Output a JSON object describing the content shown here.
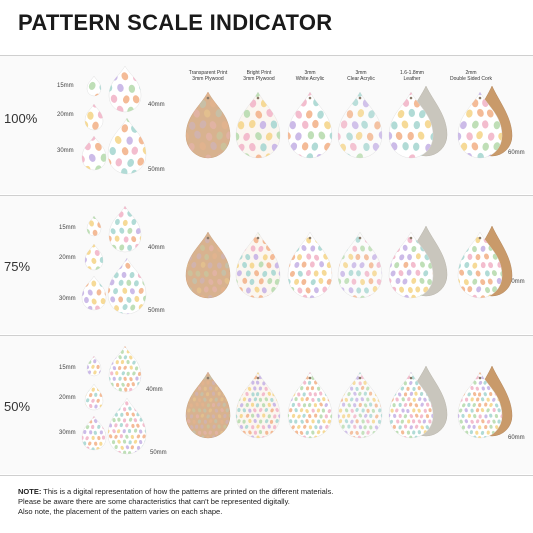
{
  "title": "PATTERN SCALE INDICATOR",
  "materials": [
    {
      "line1": "Transparent Print",
      "line2": "3mm Plywood"
    },
    {
      "line1": "Bright Print",
      "line2": "3mm Plywood"
    },
    {
      "line1": "3mm",
      "line2": "White Acrylic"
    },
    {
      "line1": "3mm",
      "line2": "Clear Acrylic"
    },
    {
      "line1": "1.6-1.8mm",
      "line2": "Leather"
    },
    {
      "line1": "2mm",
      "line2": "Double Sided Cork"
    }
  ],
  "rows": [
    {
      "scale": "100%",
      "sizes": [
        "15mm",
        "20mm",
        "30mm",
        "40mm",
        "50mm"
      ],
      "size_right": "60mm"
    },
    {
      "scale": "75%",
      "sizes": [
        "15mm",
        "20mm",
        "30mm",
        "40mm",
        "50mm"
      ],
      "size_right": "60mm"
    },
    {
      "scale": "50%",
      "sizes": [
        "15mm",
        "20mm",
        "30mm",
        "40mm",
        "50mm"
      ],
      "size_right": "60mm"
    }
  ],
  "note": {
    "label": "NOTE:",
    "line1": "This is a digital representation of how the patterns are printed on the different materials.",
    "line2": "Please be aware there are some characteristics that can't be represented digitally.",
    "line3": "Also note, the placement of the pattern varies on each shape."
  },
  "colors": {
    "plywood": "#d8b28f",
    "white": "#ffffff",
    "leather": "#c9c6bd",
    "cork": "#c99a6a",
    "egg_palette": [
      "#f2b6c9",
      "#a9d8d2",
      "#f5d68c",
      "#c7b4e6",
      "#f3b48c",
      "#b8dcb0"
    ]
  }
}
